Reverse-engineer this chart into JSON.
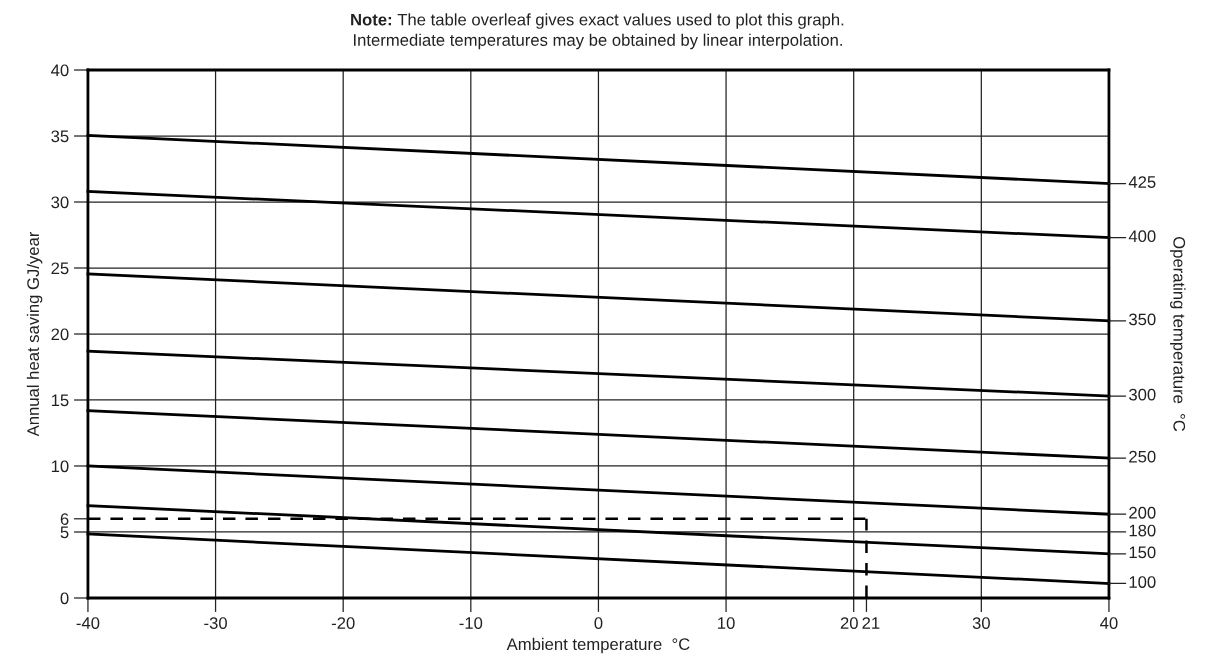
{
  "chart_data": {
    "type": "line",
    "xlabel": "Ambient temperature  °C",
    "ylabel": "Annual heat saving GJ/year",
    "y2label": "Operating temperature  °C",
    "annotations": [
      "Note:",
      "The table overleaf gives exact values used to plot this graph.\nIntermediate temperatures may be obtained by linear interpolation.",
      "180"
    ],
    "x": [
      -40,
      40
    ],
    "series": [
      {
        "name": "425",
        "color": "#000000",
        "values": [
          35.05,
          31.4
        ]
      },
      {
        "name": "400",
        "color": "#000000",
        "values": [
          30.8,
          27.3
        ]
      },
      {
        "name": "350",
        "color": "#000000",
        "values": [
          24.55,
          21.0
        ]
      },
      {
        "name": "300",
        "color": "#000000",
        "values": [
          18.7,
          15.3
        ]
      },
      {
        "name": "250",
        "color": "#000000",
        "values": [
          14.2,
          10.6
        ]
      },
      {
        "name": "200",
        "color": "#000000",
        "values": [
          10.0,
          6.35
        ]
      },
      {
        "name": "150",
        "color": "#000000",
        "values": [
          7.0,
          3.35
        ]
      },
      {
        "name": "100",
        "color": "#000000",
        "values": [
          4.85,
          1.1
        ]
      }
    ],
    "ref_lines": [
      {
        "axis": "y",
        "value": 6,
        "color": "#000000",
        "line_style": "dashed"
      },
      {
        "axis": "x",
        "value": 21,
        "color": "#000000",
        "line_style": "dashed"
      }
    ],
    "xlim": [
      -40,
      40
    ],
    "xticks": [
      -40,
      -30,
      -20,
      -10,
      0,
      10,
      20,
      {
        "value": 21,
        "label": "21"
      },
      30,
      40
    ],
    "ylim": [
      0,
      40
    ],
    "yticks": [
      0,
      5,
      {
        "value": 6,
        "label": "6"
      },
      10,
      15,
      20,
      25,
      30,
      35,
      40
    ],
    "grid": true,
    "marker": "none",
    "line_style": "solid"
  }
}
